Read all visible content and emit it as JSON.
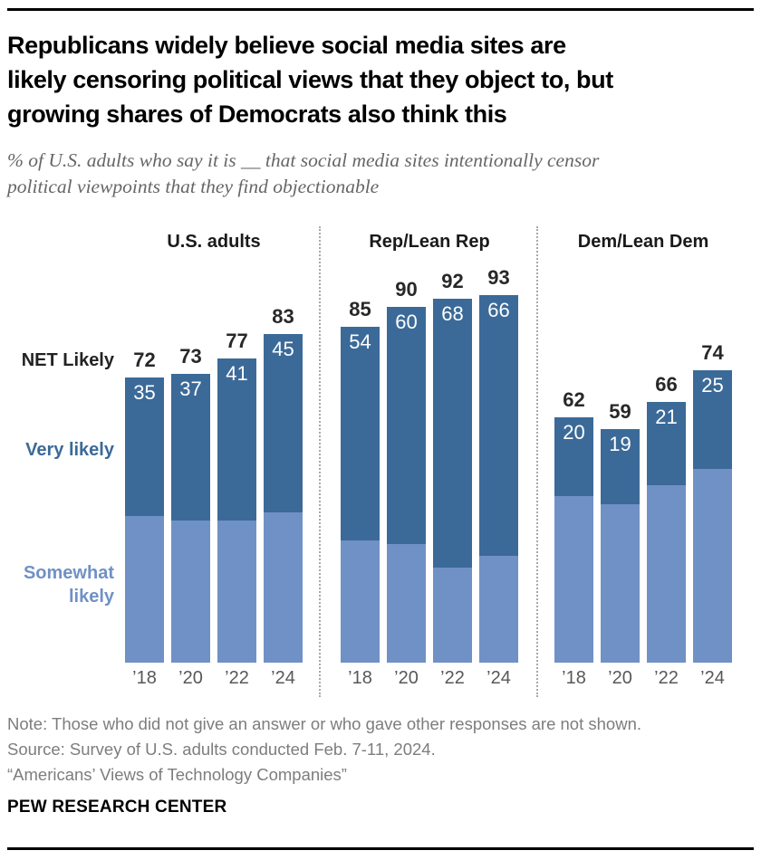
{
  "page": {
    "title_lines": [
      "Republicans widely believe social media sites are",
      "likely censoring political views that they object to, but",
      "growing shares of Democrats also think this"
    ],
    "subtitle_lines": [
      "% of U.S. adults who say it is __ that social media sites intentionally censor",
      "political viewpoints that they find objectionable"
    ],
    "footer": {
      "note": "Note: Those who did not give an answer or who gave other responses are not shown.",
      "source": "Source: Survey of U.S. adults conducted Feb. 7-11, 2024.",
      "study": "“Americans’ Views of Technology Companies”",
      "brand": "PEW RESEARCH CENTER"
    }
  },
  "chart_data": {
    "type": "bar",
    "stacked": true,
    "units": "% of U.S. adults",
    "ylim": [
      0,
      100
    ],
    "grid": false,
    "legend_position": "left",
    "categories": [
      "’18",
      "’20",
      "’22",
      "’24"
    ],
    "row_labels": {
      "net": "NET Likely",
      "very": "Very likely",
      "somewhat": "Somewhat likely"
    },
    "groups": [
      {
        "label": "U.S. adults",
        "bars": [
          {
            "year": "’18",
            "net": 72,
            "very_likely": 35
          },
          {
            "year": "’20",
            "net": 73,
            "very_likely": 37
          },
          {
            "year": "’22",
            "net": 77,
            "very_likely": 41
          },
          {
            "year": "’24",
            "net": 83,
            "very_likely": 45
          }
        ]
      },
      {
        "label": "Rep/Lean Rep",
        "bars": [
          {
            "year": "’18",
            "net": 85,
            "very_likely": 54
          },
          {
            "year": "’20",
            "net": 90,
            "very_likely": 60
          },
          {
            "year": "’22",
            "net": 92,
            "very_likely": 68
          },
          {
            "year": "’24",
            "net": 93,
            "very_likely": 66
          }
        ]
      },
      {
        "label": "Dem/Lean Dem",
        "bars": [
          {
            "year": "’18",
            "net": 62,
            "very_likely": 20
          },
          {
            "year": "’20",
            "net": 59,
            "very_likely": 19
          },
          {
            "year": "’22",
            "net": 66,
            "very_likely": 21
          },
          {
            "year": "’24",
            "net": 74,
            "very_likely": 25
          }
        ]
      }
    ],
    "colors": {
      "very_likely": "#3b6a98",
      "somewhat_likely": "#7091c5",
      "net_label": "#282828",
      "year_label": "#57585a"
    }
  }
}
